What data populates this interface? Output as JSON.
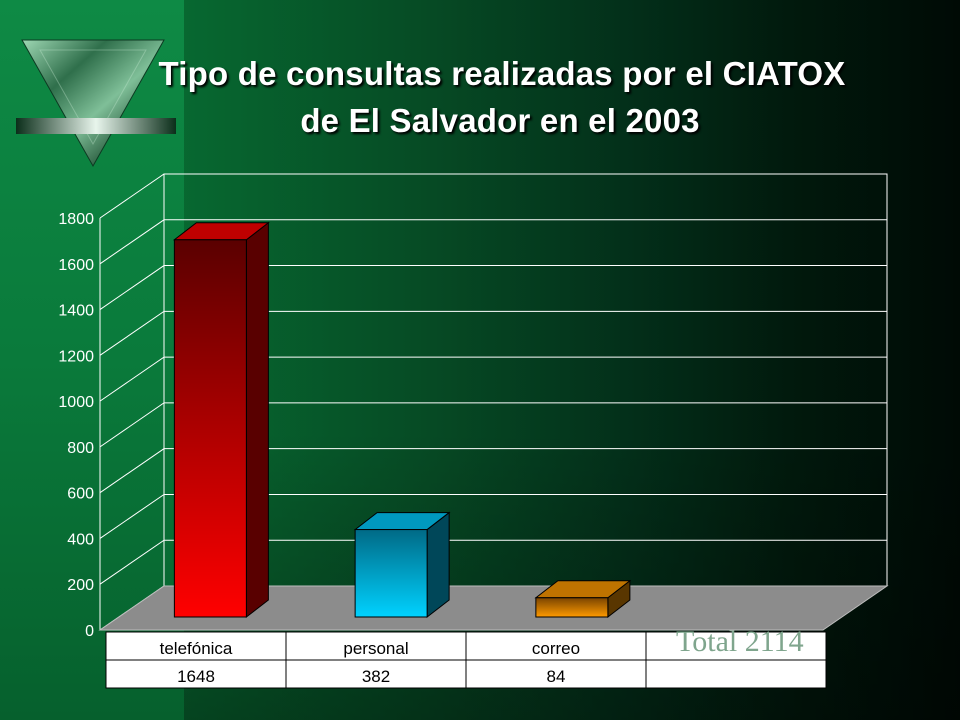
{
  "slide": {
    "title_line1": "Tipo de consultas realizadas por el CIATOX",
    "title_line2": "de El Salvador en el 2003",
    "annotation": "Total 2114",
    "logo_icon": "green-marble-triangle-logo-icon"
  },
  "chart_data": {
    "type": "bar",
    "title": "Tipo de consultas realizadas por el CIATOX de El Salvador en el 2003",
    "categories": [
      "telefónica",
      "personal",
      "correo"
    ],
    "values": [
      1648,
      382,
      84
    ],
    "value_labels": [
      "1648",
      "382",
      "84"
    ],
    "bar_colors": [
      "#ff0000",
      "#00ccff",
      "#ff9900"
    ],
    "ylim": [
      0,
      1800
    ],
    "yticks": [
      0,
      200,
      400,
      600,
      800,
      1000,
      1200,
      1400,
      1600,
      1800
    ],
    "grid": true,
    "style": "3d",
    "data_table": true,
    "xlabel": "",
    "ylabel": ""
  }
}
